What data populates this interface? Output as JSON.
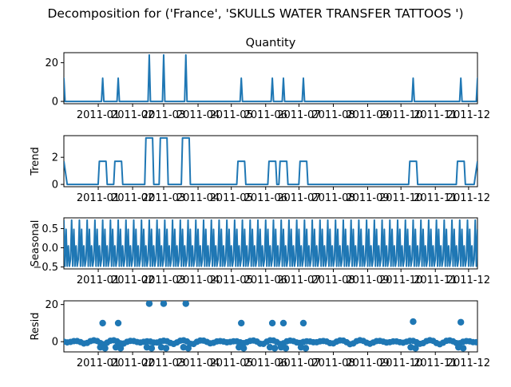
{
  "figure": {
    "suptitle": "Decomposition for ('France', 'SKULLS  WATER TRANSFER TATTOOS ')",
    "color": "#1f77b4"
  },
  "chart_data": [
    {
      "type": "line",
      "title": "Quantity",
      "ylabel": "",
      "ylim": [
        -1.2,
        25.2
      ],
      "yticks": [
        0,
        20
      ],
      "x_start": "2010-12-01",
      "x_end": "2011-12-09",
      "xticks": [
        "2011-01",
        "2011-02",
        "2011-03",
        "2011-04",
        "2011-05",
        "2011-06",
        "2011-07",
        "2011-08",
        "2011-09",
        "2011-10",
        "2011-11",
        "2011-12"
      ],
      "baseline": 0,
      "spikes": [
        {
          "date": "2010-12-01",
          "value": 12
        },
        {
          "date": "2011-01-05",
          "value": 12
        },
        {
          "date": "2011-01-19",
          "value": 12
        },
        {
          "date": "2011-02-16",
          "value": 24
        },
        {
          "date": "2011-03-01",
          "value": 24
        },
        {
          "date": "2011-03-21",
          "value": 24
        },
        {
          "date": "2011-05-10",
          "value": 12
        },
        {
          "date": "2011-06-07",
          "value": 12
        },
        {
          "date": "2011-06-17",
          "value": 12
        },
        {
          "date": "2011-07-05",
          "value": 12
        },
        {
          "date": "2011-10-12",
          "value": 12
        },
        {
          "date": "2011-11-24",
          "value": 12
        },
        {
          "date": "2011-12-09",
          "value": 12
        }
      ]
    },
    {
      "type": "line",
      "title": "",
      "ylabel": "Trend",
      "ylim": [
        -0.17,
        3.6
      ],
      "yticks": [
        0,
        2
      ],
      "x_start": "2010-12-01",
      "x_end": "2011-12-09",
      "xticks": [
        "2011-01",
        "2011-02",
        "2011-03",
        "2011-04",
        "2011-05",
        "2011-06",
        "2011-07",
        "2011-08",
        "2011-09",
        "2011-10",
        "2011-11",
        "2011-12"
      ],
      "baseline": 0,
      "plateaus": [
        {
          "start": "2011-01-02",
          "end": "2011-01-08",
          "value": 1.71
        },
        {
          "start": "2011-01-16",
          "end": "2011-01-22",
          "value": 1.71
        },
        {
          "start": "2011-02-13",
          "end": "2011-02-19",
          "value": 3.43
        },
        {
          "start": "2011-02-26",
          "end": "2011-03-04",
          "value": 3.43
        },
        {
          "start": "2011-03-18",
          "end": "2011-03-24",
          "value": 3.43
        },
        {
          "start": "2011-05-07",
          "end": "2011-05-13",
          "value": 1.71
        },
        {
          "start": "2011-06-04",
          "end": "2011-06-10",
          "value": 1.71
        },
        {
          "start": "2011-06-14",
          "end": "2011-06-20",
          "value": 1.71
        },
        {
          "start": "2011-07-02",
          "end": "2011-07-08",
          "value": 1.71
        },
        {
          "start": "2011-10-09",
          "end": "2011-10-15",
          "value": 1.71
        },
        {
          "start": "2011-11-21",
          "end": "2011-11-27",
          "value": 1.71
        }
      ],
      "start_value": 1.71,
      "end_value": 1.71
    },
    {
      "type": "line",
      "title": "",
      "ylabel": "Seasonal",
      "ylim": [
        -0.55,
        0.78
      ],
      "yticks": [
        -0.5,
        0.0,
        0.5
      ],
      "ytick_labels": [
        "−0.5",
        "0.0",
        "0.5"
      ],
      "x_start": "2010-12-01",
      "x_end": "2011-12-09",
      "xticks": [
        "2011-01",
        "2011-02",
        "2011-03",
        "2011-04",
        "2011-05",
        "2011-06",
        "2011-07",
        "2011-08",
        "2011-09",
        "2011-10",
        "2011-11",
        "2011-12"
      ],
      "period_days": 7,
      "pattern": [
        0.72,
        -0.48,
        0.48,
        -0.48,
        0.05,
        -0.48,
        -0.3
      ]
    },
    {
      "type": "scatter",
      "title": "",
      "ylabel": "Resid",
      "ylim": [
        -5.5,
        22
      ],
      "yticks": [
        0,
        20
      ],
      "x_start": "2010-12-01",
      "x_end": "2011-12-09",
      "xticks": [
        "2011-01",
        "2011-02",
        "2011-03",
        "2011-04",
        "2011-05",
        "2011-06",
        "2011-07",
        "2011-08",
        "2011-09",
        "2011-10",
        "2011-11",
        "2011-12"
      ],
      "outliers": [
        {
          "date": "2011-01-05",
          "value": 10
        },
        {
          "date": "2011-01-19",
          "value": 10
        },
        {
          "date": "2011-02-16",
          "value": 20.5
        },
        {
          "date": "2011-03-01",
          "value": 20.5
        },
        {
          "date": "2011-03-21",
          "value": 20.5
        },
        {
          "date": "2011-05-10",
          "value": 10
        },
        {
          "date": "2011-06-07",
          "value": 10
        },
        {
          "date": "2011-06-17",
          "value": 10
        },
        {
          "date": "2011-07-05",
          "value": 10
        },
        {
          "date": "2011-10-12",
          "value": 10.8
        },
        {
          "date": "2011-11-24",
          "value": 10.5
        }
      ],
      "baseline_range": [
        -2.5,
        1.0
      ]
    }
  ]
}
